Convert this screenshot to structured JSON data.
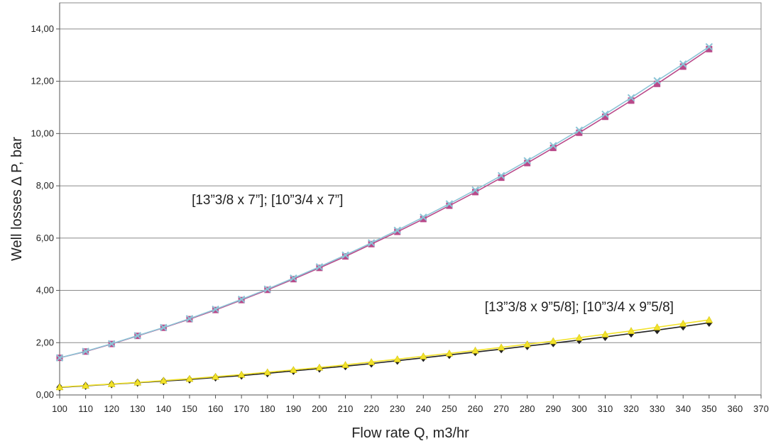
{
  "chart_data": {
    "type": "line",
    "title": "",
    "xlabel": "Flow rate Q, m3/hr",
    "ylabel": "Well losses ∆ P, bar",
    "xlim": [
      100,
      370
    ],
    "ylim": [
      0,
      15
    ],
    "x_ticks": [
      100,
      110,
      120,
      130,
      140,
      150,
      160,
      170,
      180,
      190,
      200,
      210,
      220,
      230,
      240,
      250,
      260,
      270,
      280,
      290,
      300,
      310,
      320,
      330,
      340,
      350,
      360,
      370
    ],
    "x_tick_labels": [
      "100",
      "110",
      "120",
      "130",
      "140",
      "150",
      "160",
      "170",
      "180",
      "190",
      "200",
      "210",
      "220",
      "230",
      "240",
      "250",
      "260",
      "270",
      "280",
      "290",
      "300",
      "310",
      "320",
      "330",
      "340",
      "350",
      "360",
      "370"
    ],
    "y_ticks": [
      0,
      2,
      4,
      6,
      8,
      10,
      12,
      14
    ],
    "y_tick_labels": [
      "0,00",
      "2,00",
      "4,00",
      "6,00",
      "8,00",
      "10,00",
      "12,00",
      "14,00"
    ],
    "grid": {
      "horizontal": true,
      "vertical": false
    },
    "legend": "none",
    "annotations": [
      {
        "text": "[13”3/8 x 7”]; [10”3/4 x 7”]",
        "x": 180,
        "y": 7.3
      },
      {
        "text": "[13”3/8 x 9”5/8]; [10”3/4 x 9”5/8]",
        "x": 300,
        "y": 3.2
      }
    ],
    "x": [
      100,
      110,
      120,
      130,
      140,
      150,
      160,
      170,
      180,
      190,
      200,
      210,
      220,
      230,
      240,
      250,
      260,
      270,
      280,
      290,
      300,
      310,
      320,
      330,
      340,
      350
    ],
    "series": [
      {
        "color": "#b94a8a",
        "marker": "square",
        "values": [
          1.42,
          1.66,
          1.95,
          2.26,
          2.57,
          2.9,
          3.25,
          3.63,
          4.02,
          4.43,
          4.86,
          5.3,
          5.77,
          6.24,
          6.73,
          7.24,
          7.76,
          8.31,
          8.87,
          9.45,
          10.03,
          10.64,
          11.26,
          11.9,
          12.56,
          13.23
        ]
      },
      {
        "color": "#8cc4d6",
        "marker": "x",
        "values": [
          1.42,
          1.67,
          1.96,
          2.27,
          2.58,
          2.92,
          3.28,
          3.66,
          4.05,
          4.47,
          4.9,
          5.35,
          5.82,
          6.3,
          6.8,
          7.31,
          7.84,
          8.39,
          8.96,
          9.54,
          10.13,
          10.74,
          11.37,
          12.02,
          12.66,
          13.32
        ]
      },
      {
        "color": "#222222",
        "marker": "diamond",
        "values": [
          0.29,
          0.35,
          0.41,
          0.47,
          0.53,
          0.59,
          0.67,
          0.74,
          0.83,
          0.92,
          1.01,
          1.1,
          1.2,
          1.31,
          1.42,
          1.53,
          1.64,
          1.75,
          1.87,
          1.98,
          2.1,
          2.22,
          2.35,
          2.48,
          2.62,
          2.76
        ]
      },
      {
        "color": "#f2e22a",
        "marker": "triangle",
        "values": [
          0.3,
          0.36,
          0.42,
          0.48,
          0.55,
          0.62,
          0.7,
          0.78,
          0.87,
          0.96,
          1.05,
          1.15,
          1.26,
          1.37,
          1.48,
          1.59,
          1.7,
          1.82,
          1.94,
          2.06,
          2.19,
          2.32,
          2.45,
          2.59,
          2.73,
          2.87
        ]
      }
    ]
  }
}
